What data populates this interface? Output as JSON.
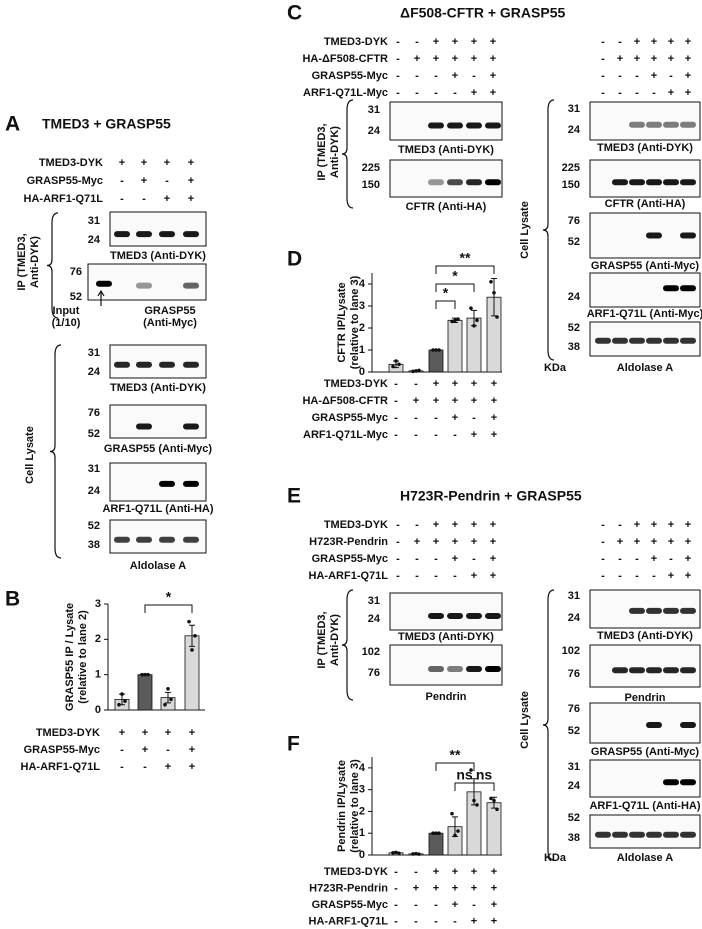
{
  "panel_a": {
    "label": "A",
    "title": "TMED3 + GRASP55",
    "conditions": [
      {
        "name": "TMED3-DYK",
        "signs": [
          "+",
          "+",
          "+",
          "+"
        ]
      },
      {
        "name": "GRASP55-Myc",
        "signs": [
          "-",
          "+",
          "-",
          "+"
        ]
      },
      {
        "name": "HA-ARF1-Q71L",
        "signs": [
          "-",
          "-",
          "+",
          "+"
        ]
      }
    ],
    "ip_label": [
      "IP (TMED3,",
      "Anti-DYK)"
    ],
    "ip_blots": [
      {
        "caption": [
          "TMED3 (Anti-DYK)"
        ],
        "markers": [
          31,
          24
        ]
      },
      {
        "caption": [
          "GRASP55",
          "(Anti-Myc)"
        ],
        "markers": [
          76,
          52
        ],
        "note": [
          "Input",
          "(1/10)"
        ]
      }
    ],
    "lysate_label": "Cell Lysate",
    "lysate_blots": [
      {
        "caption": [
          "TMED3 (Anti-DYK)"
        ],
        "markers": [
          31,
          24
        ]
      },
      {
        "caption": [
          "GRASP55 (Anti-Myc)"
        ],
        "markers": [
          76,
          52
        ]
      },
      {
        "caption": [
          "ARF1-Q71L (Anti-HA)"
        ],
        "markers": [
          31,
          24
        ]
      },
      {
        "caption": [
          "Aldolase A"
        ],
        "markers": [
          52,
          38
        ]
      }
    ]
  },
  "panel_c": {
    "label": "C",
    "title": "ΔF508-CFTR + GRASP55",
    "conditions": [
      {
        "name": "TMED3-DYK",
        "signs": [
          "-",
          "-",
          "+",
          "+",
          "+",
          "+"
        ]
      },
      {
        "name": "HA-ΔF508-CFTR",
        "signs": [
          "-",
          "+",
          "+",
          "+",
          "+",
          "+"
        ]
      },
      {
        "name": "GRASP55-Myc",
        "signs": [
          "-",
          "-",
          "-",
          "+",
          "-",
          "+"
        ]
      },
      {
        "name": "ARF1-Q71L-Myc",
        "signs": [
          "-",
          "-",
          "-",
          "-",
          "+",
          "+"
        ]
      }
    ],
    "ip_label": [
      "IP (TMED3,",
      "Anti-DYK)"
    ],
    "ip_blots": [
      {
        "caption": [
          "TMED3 (Anti-DYK)"
        ],
        "markers": [
          31,
          24
        ]
      },
      {
        "caption": [
          "CFTR (Anti-HA)"
        ],
        "markers": [
          225,
          150
        ]
      }
    ],
    "lysate_label": "Cell Lysate",
    "lysate_blots": [
      {
        "caption": [
          "TMED3 (Anti-DYK)"
        ],
        "markers": [
          31,
          24
        ]
      },
      {
        "caption": [
          "CFTR (Anti-HA)"
        ],
        "markers": [
          225,
          150
        ]
      },
      {
        "caption": [
          "GRASP55 (Anti-Myc)"
        ],
        "markers": [
          76,
          52
        ]
      },
      {
        "caption": [
          "ARF1-Q71L (Anti-Myc)"
        ],
        "markers": [
          24
        ]
      },
      {
        "caption": [
          "Aldolase A"
        ],
        "markers": [
          52,
          38
        ]
      }
    ],
    "kda": "KDa"
  },
  "panel_e": {
    "label": "E",
    "title": "H723R-Pendrin + GRASP55",
    "conditions": [
      {
        "name": "TMED3-DYK",
        "signs": [
          "-",
          "-",
          "+",
          "+",
          "+",
          "+"
        ]
      },
      {
        "name": "H723R-Pendrin",
        "signs": [
          "-",
          "+",
          "+",
          "+",
          "+",
          "+"
        ]
      },
      {
        "name": "GRASP55-Myc",
        "signs": [
          "-",
          "-",
          "-",
          "+",
          "-",
          "+"
        ]
      },
      {
        "name": "HA-ARF1-Q71L",
        "signs": [
          "-",
          "-",
          "-",
          "-",
          "+",
          "+"
        ]
      }
    ],
    "ip_label": [
      "IP (TMED3,",
      "Anti-DYK)"
    ],
    "ip_blots": [
      {
        "caption": [
          "TMED3 (Anti-DYK)"
        ],
        "markers": [
          31,
          24
        ]
      },
      {
        "caption": [
          "Pendrin"
        ],
        "markers": [
          102,
          76
        ]
      }
    ],
    "lysate_label": "Cell Lysate",
    "lysate_blots": [
      {
        "caption": [
          "TMED3 (Anti-DYK)"
        ],
        "markers": [
          31,
          24
        ]
      },
      {
        "caption": [
          "Pendrin"
        ],
        "markers": [
          102,
          76
        ]
      },
      {
        "caption": [
          "GRASP55 (Anti-Myc)"
        ],
        "markers": [
          76,
          52
        ]
      },
      {
        "caption": [
          "ARF1-Q71L (Anti-HA)"
        ],
        "markers": [
          31,
          24
        ]
      },
      {
        "caption": [
          "Aldolase A"
        ],
        "markers": [
          52,
          38
        ]
      }
    ],
    "kda": "KDa"
  },
  "chart_data": [
    {
      "type": "bar",
      "label": "B",
      "ylabel": [
        "GRASP55  IP / Lysate",
        "(relative to lane 2)"
      ],
      "ylim": [
        0,
        3
      ],
      "yticks": [
        0,
        1,
        2,
        3
      ],
      "values": [
        0.3,
        1,
        0.35,
        2.1
      ],
      "errors": [
        0.15,
        0,
        0.15,
        0.3
      ],
      "points": [
        [
          0.15,
          0.45,
          0.25
        ],
        [
          1,
          1,
          1
        ],
        [
          0.15,
          0.6,
          0.3
        ],
        [
          2.5,
          1.7,
          2.1
        ]
      ],
      "colors": [
        "#d9d9d9",
        "#5a5a5a",
        "#d9d9d9",
        "#d9d9d9"
      ],
      "significance": [
        {
          "label": "*",
          "bars": [
            1,
            3
          ]
        }
      ],
      "conditions": [
        {
          "name": "TMED3-DYK",
          "signs": [
            "+",
            "+",
            "+",
            "+"
          ]
        },
        {
          "name": "GRASP55-Myc",
          "signs": [
            "-",
            "+",
            "-",
            "+"
          ]
        },
        {
          "name": "HA-ARF1-Q71L",
          "signs": [
            "-",
            "-",
            "+",
            "+"
          ]
        }
      ]
    },
    {
      "type": "bar",
      "label": "D",
      "ylabel": [
        "CFTR IP/Lysate",
        "(relative to lane 3)"
      ],
      "ylim": [
        0,
        4.5
      ],
      "yticks": [
        0,
        1,
        2,
        3,
        4
      ],
      "values": [
        0.35,
        0.05,
        1,
        2.35,
        2.45,
        3.4
      ],
      "errors": [
        0.15,
        0.02,
        0,
        0.1,
        0.35,
        0.85
      ],
      "points": [
        [
          0.25,
          0.5,
          0.35
        ],
        [
          0.03,
          0.05,
          0.07
        ],
        [
          1,
          1,
          1
        ],
        [
          2.3,
          2.35,
          2.4
        ],
        [
          2.9,
          2.1,
          2.35
        ],
        [
          4.1,
          3.6,
          2.5
        ]
      ],
      "colors": [
        "#d9d9d9",
        "#d9d9d9",
        "#5a5a5a",
        "#d9d9d9",
        "#d9d9d9",
        "#d9d9d9"
      ],
      "significance": [
        {
          "label": "**",
          "bars": [
            2,
            5
          ]
        },
        {
          "label": "*",
          "bars": [
            2,
            4
          ]
        },
        {
          "label": "*",
          "bars": [
            2,
            3
          ]
        }
      ],
      "conditions": [
        {
          "name": "TMED3-DYK",
          "signs": [
            "-",
            "-",
            "+",
            "+",
            "+",
            "+"
          ]
        },
        {
          "name": "HA-ΔF508-CFTR",
          "signs": [
            "-",
            "+",
            "+",
            "+",
            "+",
            "+"
          ]
        },
        {
          "name": "GRASP55-Myc",
          "signs": [
            "-",
            "-",
            "-",
            "+",
            "-",
            "+"
          ]
        },
        {
          "name": "ARF1-Q71L-Myc",
          "signs": [
            "-",
            "-",
            "-",
            "-",
            "+",
            "+"
          ]
        }
      ]
    },
    {
      "type": "bar",
      "label": "F",
      "ylabel": [
        "Pendrin IP/Lysate",
        "(relative to lane 3)"
      ],
      "ylim": [
        0,
        4.5
      ],
      "yticks": [
        0,
        1,
        2,
        3,
        4
      ],
      "values": [
        0.1,
        0.05,
        1,
        1.3,
        2.9,
        2.4
      ],
      "errors": [
        0.03,
        0.02,
        0,
        0.45,
        0.6,
        0.25
      ],
      "points": [
        [
          0.1,
          0.12,
          0.08
        ],
        [
          0.05,
          0.06,
          0.04
        ],
        [
          1,
          1,
          1
        ],
        [
          1.9,
          0.9,
          1.1
        ],
        [
          3.9,
          2.5,
          2.3
        ],
        [
          2.6,
          2.5,
          2.1
        ]
      ],
      "colors": [
        "#d9d9d9",
        "#d9d9d9",
        "#5a5a5a",
        "#d9d9d9",
        "#d9d9d9",
        "#d9d9d9"
      ],
      "significance": [
        {
          "label": "**",
          "bars": [
            2,
            4
          ]
        },
        {
          "label": "ns",
          "bars": [
            3,
            4
          ]
        },
        {
          "label": "ns",
          "bars": [
            4,
            5
          ]
        }
      ],
      "conditions": [
        {
          "name": "TMED3-DYK",
          "signs": [
            "-",
            "-",
            "+",
            "+",
            "+",
            "+"
          ]
        },
        {
          "name": "H723R-Pendrin",
          "signs": [
            "-",
            "+",
            "+",
            "+",
            "+",
            "+"
          ]
        },
        {
          "name": "GRASP55-Myc",
          "signs": [
            "-",
            "-",
            "-",
            "+",
            "-",
            "+"
          ]
        },
        {
          "name": "HA-ARF1-Q71L",
          "signs": [
            "-",
            "-",
            "-",
            "-",
            "+",
            "+"
          ]
        }
      ]
    }
  ]
}
